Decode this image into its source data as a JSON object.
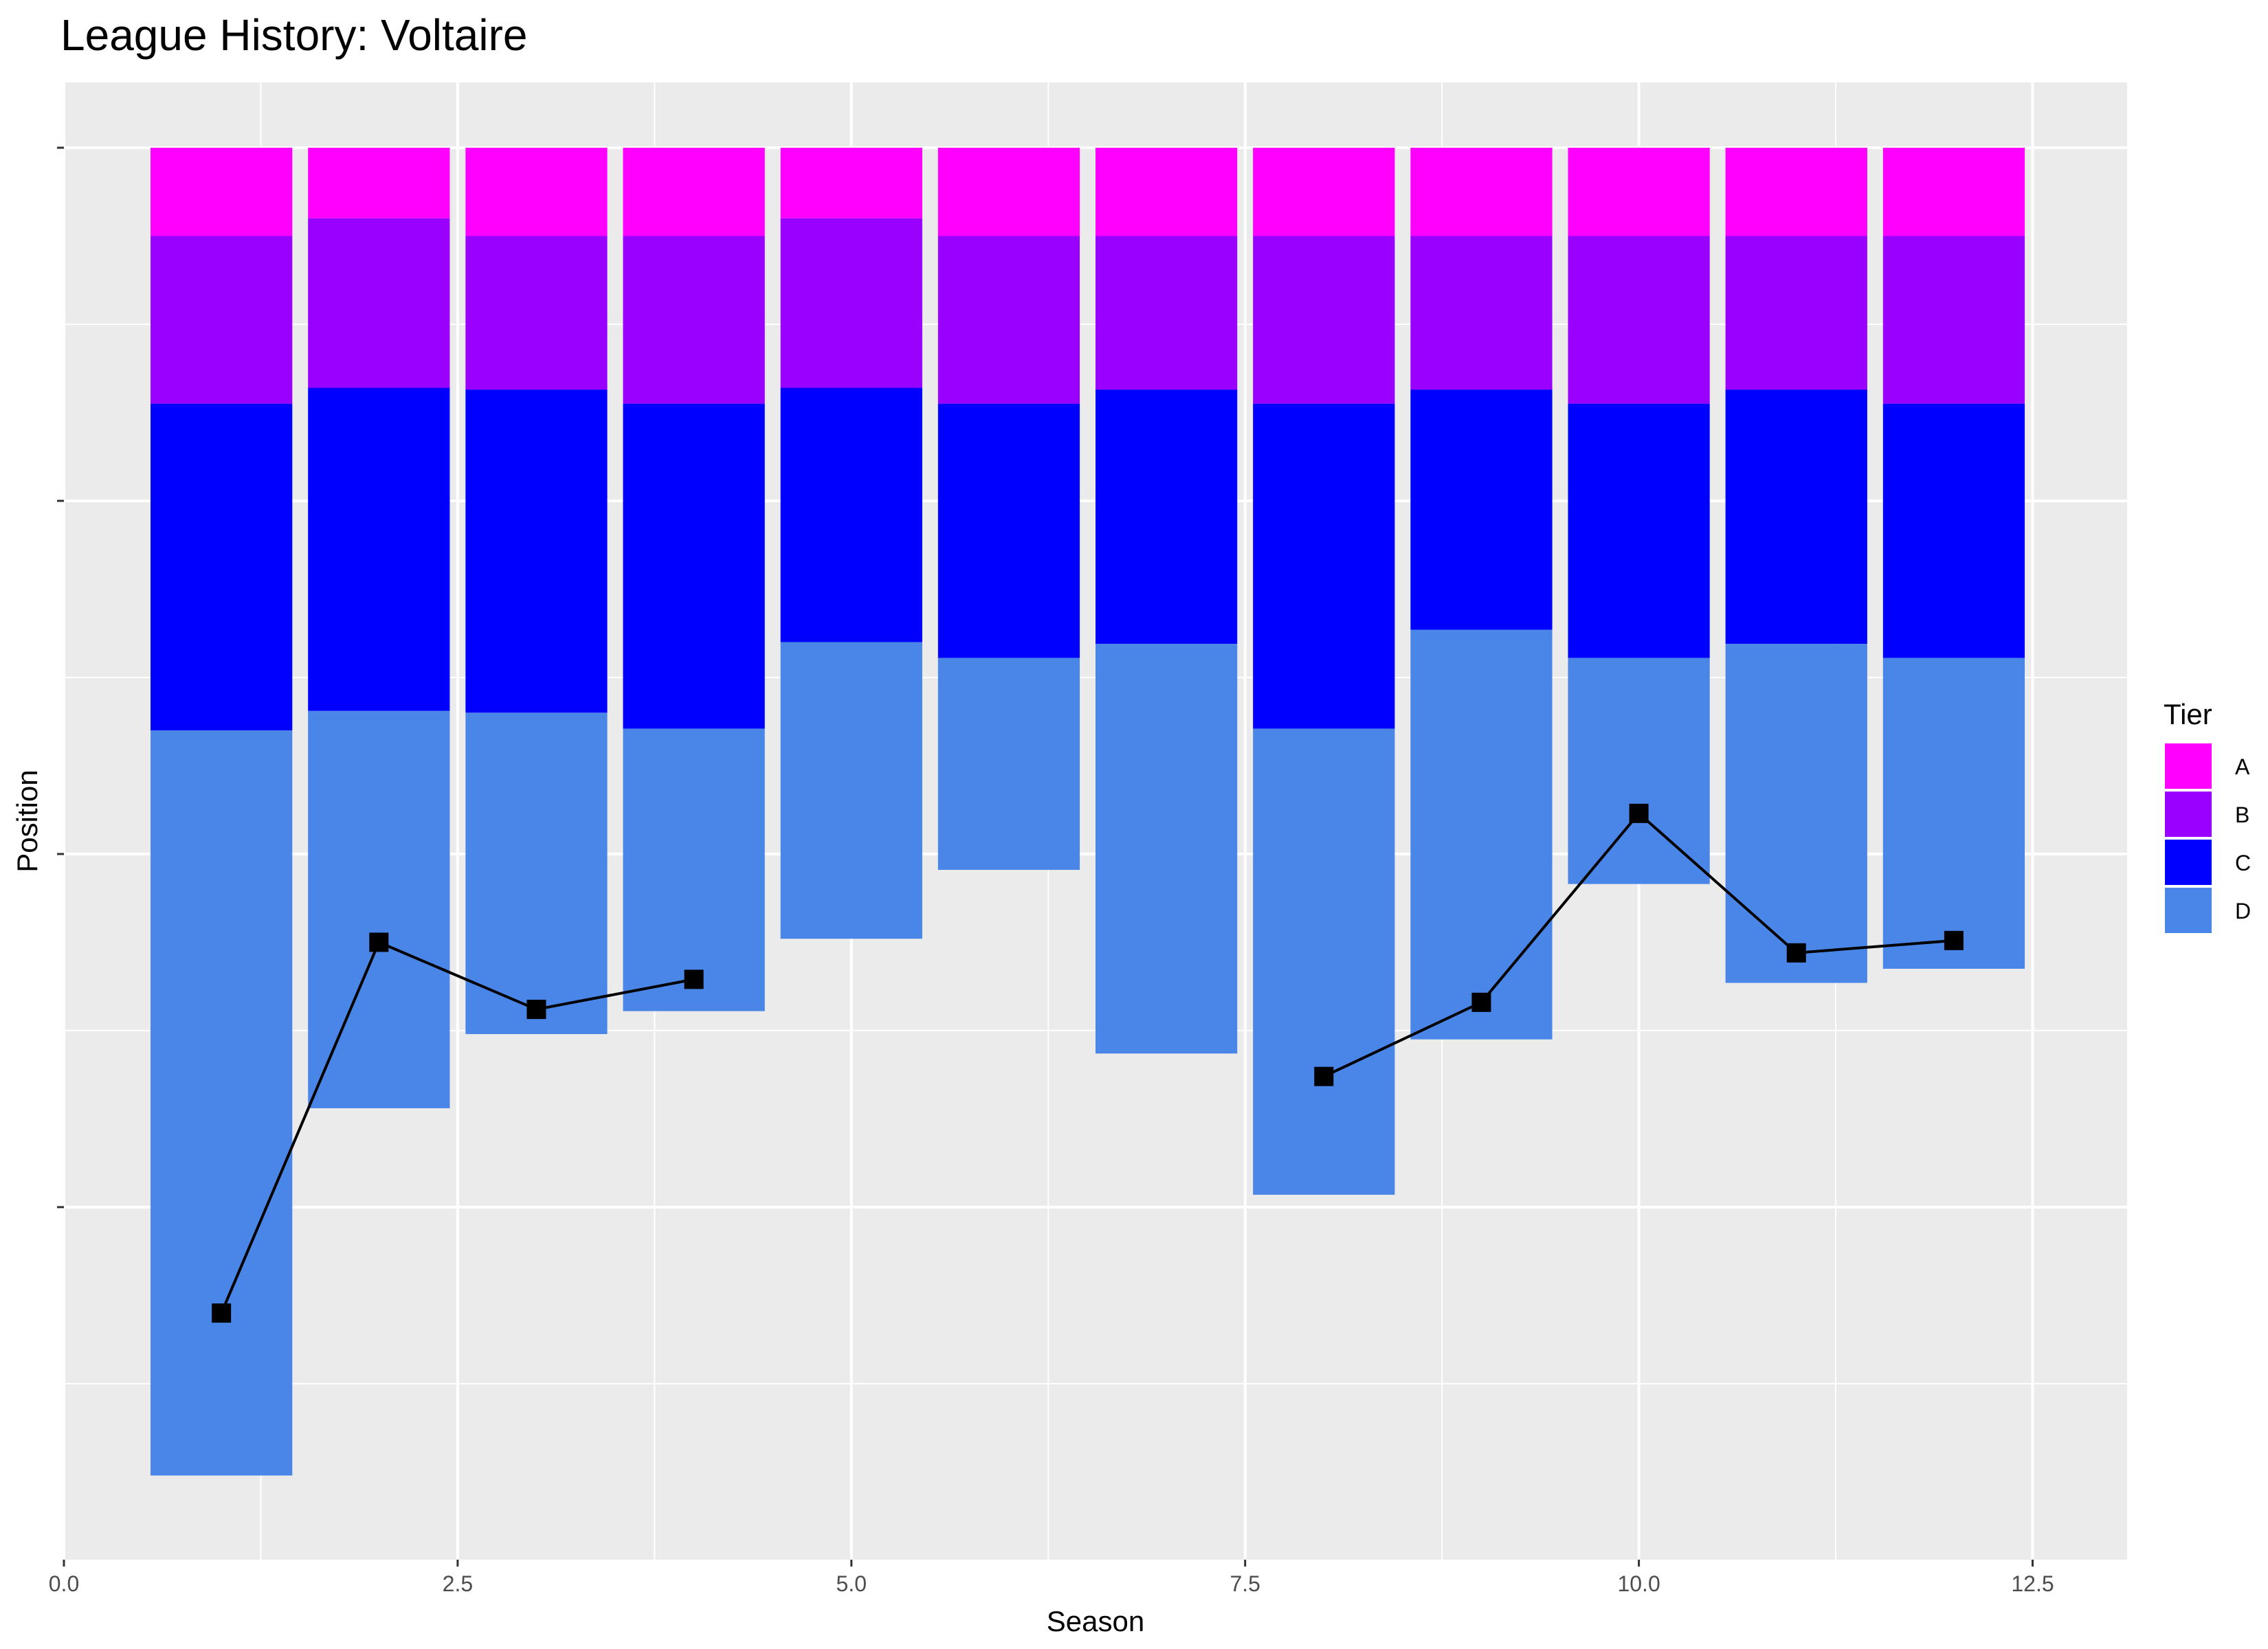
{
  "title": "League History: Voltaire",
  "chart_data": {
    "type": "bar",
    "title": "League History: Voltaire",
    "xlabel": "Season",
    "ylabel": "Position",
    "xlim": [
      0,
      13.1
    ],
    "ylim": [
      0,
      79.5
    ],
    "y_reversed": true,
    "x_ticks": [
      {
        "value": 0,
        "label": "0.0"
      },
      {
        "value": 2.5,
        "label": "2.5"
      },
      {
        "value": 5,
        "label": "5.0"
      },
      {
        "value": 7.5,
        "label": "7.5"
      },
      {
        "value": 10,
        "label": "10.0"
      },
      {
        "value": 12.5,
        "label": "12.5"
      }
    ],
    "y_ticks": [
      0,
      20,
      40,
      60
    ],
    "y_minor_ticks": [
      10,
      30,
      50,
      70
    ],
    "grid": true,
    "legend_title": "Tier",
    "legend_position": "right",
    "tiers": [
      {
        "name": "A",
        "color": "#FF00FF"
      },
      {
        "name": "B",
        "color": "#9900FF"
      },
      {
        "name": "C",
        "color": "#0000FF"
      },
      {
        "name": "D",
        "color": "#4A86E8"
      }
    ],
    "seasons": [
      {
        "season": 1,
        "sizes": [
          5,
          9.5,
          18.5,
          42.2
        ]
      },
      {
        "season": 2,
        "sizes": [
          4,
          9.6,
          18.3,
          22.5
        ]
      },
      {
        "season": 3,
        "sizes": [
          5,
          8.7,
          18.3,
          18.2
        ]
      },
      {
        "season": 4,
        "sizes": [
          5,
          9.5,
          18.4,
          16
        ]
      },
      {
        "season": 5,
        "sizes": [
          4,
          9.6,
          14.4,
          16.8
        ]
      },
      {
        "season": 6,
        "sizes": [
          5,
          9.5,
          14.4,
          12
        ]
      },
      {
        "season": 7,
        "sizes": [
          5,
          8.7,
          14.4,
          23.2
        ]
      },
      {
        "season": 8,
        "sizes": [
          5,
          9.5,
          18.4,
          26.4
        ]
      },
      {
        "season": 9,
        "sizes": [
          5,
          8.7,
          13.6,
          23.2
        ]
      },
      {
        "season": 10,
        "sizes": [
          5,
          9.5,
          14.4,
          12.8
        ]
      },
      {
        "season": 11,
        "sizes": [
          5,
          8.7,
          14.4,
          19.2
        ]
      },
      {
        "season": 12,
        "sizes": [
          5,
          9.5,
          14.4,
          17.6
        ]
      }
    ],
    "bar_width": 0.9,
    "position_line": [
      {
        "season": 1,
        "position": 66
      },
      {
        "season": 2,
        "position": 45
      },
      {
        "season": 3,
        "position": 48.8
      },
      {
        "season": 4,
        "position": 47.1
      },
      {
        "season": null,
        "position": null
      },
      {
        "season": 8,
        "position": 52.6
      },
      {
        "season": 9,
        "position": 48.4
      },
      {
        "season": 10,
        "position": 37.7
      },
      {
        "season": 11,
        "position": 45.6
      },
      {
        "season": 12,
        "position": 44.9
      }
    ],
    "panel_color": "#EBEBEB",
    "grid_color": "#FFFFFF",
    "line_color": "#000000"
  }
}
